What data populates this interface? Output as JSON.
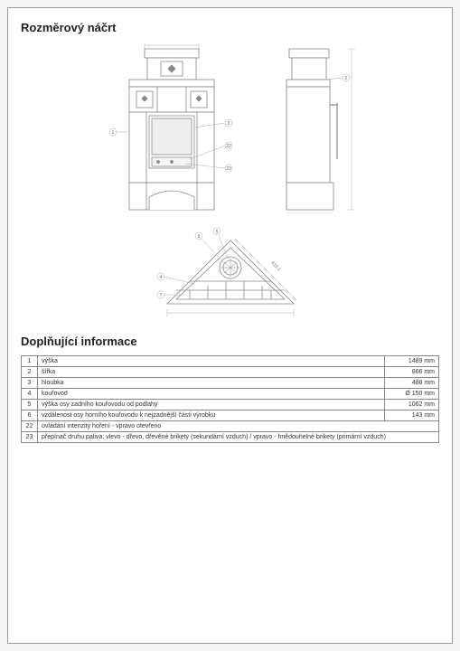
{
  "drawing_colors": {
    "stroke": "#888888",
    "fill": "#ffffff",
    "thin": "#aaaaaa"
  },
  "section1_title": "Rozměrový náčrt",
  "section2_title": "Doplňující informace",
  "callouts": [
    "1",
    "2",
    "3",
    "4",
    "5",
    "6",
    "7",
    "22",
    "23"
  ],
  "top_dim_label": "610.1",
  "table": [
    {
      "num": "1",
      "label": "výška",
      "value": "1489 mm"
    },
    {
      "num": "2",
      "label": "šířka",
      "value": "866 mm"
    },
    {
      "num": "3",
      "label": "hloubka",
      "value": "488 mm"
    },
    {
      "num": "4",
      "label": "kouřovod",
      "value": "Ø 150 mm"
    },
    {
      "num": "5",
      "label": "výška osy zadního kouřovodu od podlahy",
      "value": "1062 mm"
    },
    {
      "num": "6",
      "label": "vzdálenost osy horního kouřovodu k nejzadnější části výrobku",
      "value": "143 mm"
    },
    {
      "num": "22",
      "label": "ovládání intenzity hoření - vpravo otevřeno",
      "value": ""
    },
    {
      "num": "23",
      "label": "přepínač druhu paliva: vlevo - dřevo, dřevěné brikety (sekundární vzduch) / vpravo - hnědouhelné brikety (primární vzduch)",
      "value": ""
    }
  ]
}
